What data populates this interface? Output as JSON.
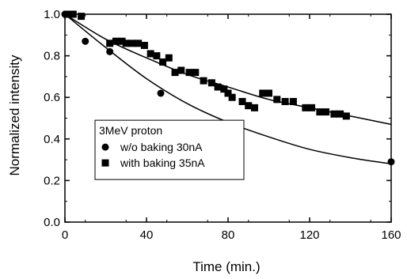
{
  "chart_data": {
    "type": "scatter",
    "title": "",
    "xlabel": "Time (min.)",
    "ylabel": "Normalized intensity",
    "xlim": [
      0,
      160
    ],
    "ylim": [
      0.0,
      1.0
    ],
    "xticks": [
      0,
      40,
      80,
      120,
      160
    ],
    "xtick_labels": [
      "0",
      "40",
      "80",
      "120",
      "160"
    ],
    "yticks": [
      0.0,
      0.2,
      0.4,
      0.6,
      0.8,
      1.0
    ],
    "ytick_labels": [
      "0.0",
      "0.2",
      "0.4",
      "0.6",
      "0.8",
      "1.0"
    ],
    "grid": false,
    "legend": {
      "title": "3MeV proton",
      "placement": "bottom-left"
    },
    "series": [
      {
        "name": "w/o baking 30nA",
        "marker": "circle",
        "color": "#000000",
        "x": [
          0,
          10,
          22,
          47,
          160
        ],
        "y": [
          1.0,
          0.87,
          0.82,
          0.62,
          0.29
        ],
        "fit": {
          "x": [
            0,
            20,
            40,
            60,
            80,
            100,
            120,
            140,
            160
          ],
          "y": [
            1.0,
            0.84,
            0.69,
            0.57,
            0.48,
            0.41,
            0.35,
            0.31,
            0.28
          ]
        }
      },
      {
        "name": "with baking 35nA",
        "marker": "square",
        "color": "#000000",
        "x": [
          1,
          4,
          8,
          22,
          25,
          28,
          30,
          33,
          36,
          39,
          42,
          45,
          48,
          51,
          54,
          57,
          61,
          64,
          68,
          72,
          75,
          78,
          80,
          82,
          87,
          90,
          93,
          97,
          100,
          104,
          108,
          112,
          118,
          121,
          125,
          128,
          132,
          135,
          138
        ],
        "y": [
          1.0,
          1.0,
          0.99,
          0.86,
          0.87,
          0.87,
          0.86,
          0.86,
          0.86,
          0.85,
          0.81,
          0.8,
          0.77,
          0.79,
          0.72,
          0.73,
          0.72,
          0.72,
          0.68,
          0.67,
          0.65,
          0.64,
          0.62,
          0.6,
          0.58,
          0.56,
          0.55,
          0.62,
          0.62,
          0.59,
          0.58,
          0.58,
          0.55,
          0.55,
          0.53,
          0.53,
          0.52,
          0.52,
          0.51
        ],
        "fit": {
          "x": [
            0,
            20,
            40,
            60,
            80,
            100,
            120,
            140,
            160
          ],
          "y": [
            1.0,
            0.88,
            0.79,
            0.71,
            0.65,
            0.59,
            0.55,
            0.51,
            0.47
          ]
        }
      }
    ]
  }
}
